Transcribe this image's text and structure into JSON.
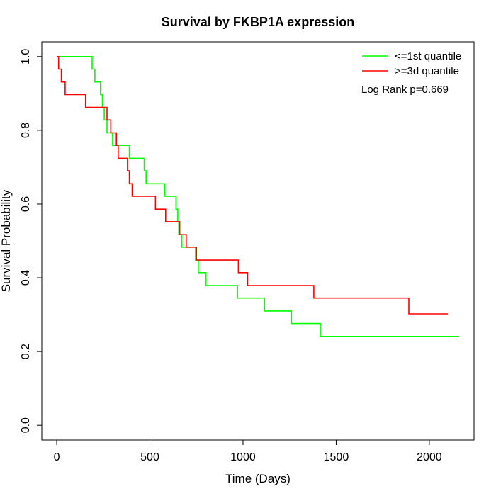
{
  "chart_data": {
    "type": "line",
    "title": "Survival by FKBP1A expression",
    "xlabel": "Time (Days)",
    "ylabel": "Survival Probability",
    "xlim": [
      -80,
      2240
    ],
    "ylim": [
      -0.04,
      1.04
    ],
    "x_ticks": [
      0,
      500,
      1000,
      1500,
      2000
    ],
    "y_ticks": [
      0.0,
      0.2,
      0.4,
      0.6,
      0.8,
      1.0
    ],
    "x_tick_labels": [
      "0",
      "500",
      "1000",
      "1500",
      "2000"
    ],
    "y_tick_labels": [
      "0.0",
      "0.2",
      "0.4",
      "0.6",
      "0.8",
      "1.0"
    ],
    "grid": false,
    "legend_position": "top-right",
    "annotation": "Log Rank p=0.669",
    "series": [
      {
        "name": "<=1st quantile",
        "color": "#00ff00",
        "points": [
          [
            0,
            1.0
          ],
          [
            190,
            1.0
          ],
          [
            190,
            0.966
          ],
          [
            205,
            0.966
          ],
          [
            205,
            0.931
          ],
          [
            235,
            0.931
          ],
          [
            235,
            0.897
          ],
          [
            245,
            0.897
          ],
          [
            245,
            0.862
          ],
          [
            255,
            0.862
          ],
          [
            255,
            0.828
          ],
          [
            270,
            0.828
          ],
          [
            270,
            0.793
          ],
          [
            300,
            0.793
          ],
          [
            300,
            0.759
          ],
          [
            390,
            0.759
          ],
          [
            390,
            0.724
          ],
          [
            470,
            0.724
          ],
          [
            470,
            0.69
          ],
          [
            480,
            0.69
          ],
          [
            480,
            0.655
          ],
          [
            580,
            0.655
          ],
          [
            580,
            0.621
          ],
          [
            640,
            0.621
          ],
          [
            640,
            0.586
          ],
          [
            650,
            0.586
          ],
          [
            650,
            0.552
          ],
          [
            655,
            0.552
          ],
          [
            655,
            0.517
          ],
          [
            670,
            0.517
          ],
          [
            670,
            0.483
          ],
          [
            745,
            0.483
          ],
          [
            745,
            0.448
          ],
          [
            760,
            0.448
          ],
          [
            760,
            0.414
          ],
          [
            800,
            0.414
          ],
          [
            800,
            0.379
          ],
          [
            970,
            0.379
          ],
          [
            970,
            0.345
          ],
          [
            1115,
            0.345
          ],
          [
            1115,
            0.31
          ],
          [
            1260,
            0.31
          ],
          [
            1260,
            0.276
          ],
          [
            1415,
            0.276
          ],
          [
            1415,
            0.241
          ],
          [
            2160,
            0.241
          ]
        ]
      },
      {
        "name": ">=3d quantile",
        "color": "#ff0000",
        "points": [
          [
            0,
            1.0
          ],
          [
            10,
            1.0
          ],
          [
            10,
            0.966
          ],
          [
            25,
            0.966
          ],
          [
            25,
            0.931
          ],
          [
            45,
            0.931
          ],
          [
            45,
            0.897
          ],
          [
            155,
            0.897
          ],
          [
            155,
            0.862
          ],
          [
            270,
            0.862
          ],
          [
            270,
            0.828
          ],
          [
            290,
            0.828
          ],
          [
            290,
            0.793
          ],
          [
            320,
            0.793
          ],
          [
            320,
            0.759
          ],
          [
            330,
            0.759
          ],
          [
            330,
            0.724
          ],
          [
            380,
            0.724
          ],
          [
            380,
            0.69
          ],
          [
            390,
            0.69
          ],
          [
            390,
            0.655
          ],
          [
            405,
            0.655
          ],
          [
            405,
            0.621
          ],
          [
            530,
            0.621
          ],
          [
            530,
            0.586
          ],
          [
            585,
            0.586
          ],
          [
            585,
            0.552
          ],
          [
            660,
            0.552
          ],
          [
            660,
            0.517
          ],
          [
            695,
            0.517
          ],
          [
            695,
            0.483
          ],
          [
            750,
            0.483
          ],
          [
            750,
            0.448
          ],
          [
            975,
            0.448
          ],
          [
            975,
            0.414
          ],
          [
            1025,
            0.414
          ],
          [
            1025,
            0.379
          ],
          [
            1380,
            0.379
          ],
          [
            1380,
            0.345
          ],
          [
            1890,
            0.345
          ],
          [
            1890,
            0.302
          ],
          [
            2100,
            0.302
          ]
        ]
      }
    ]
  }
}
